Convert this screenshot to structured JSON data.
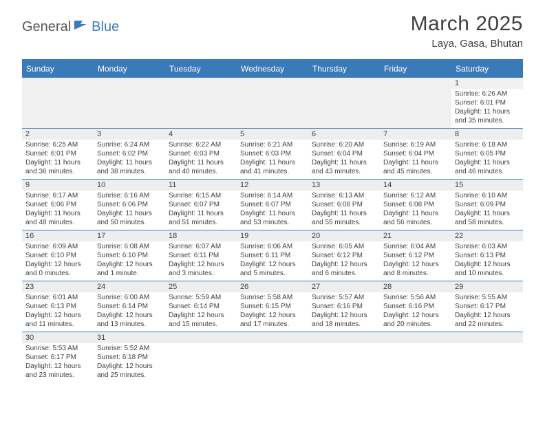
{
  "logo": {
    "part1": "General",
    "part2": "Blue"
  },
  "title": "March 2025",
  "location": "Laya, Gasa, Bhutan",
  "colors": {
    "accent": "#3b7ab8",
    "text": "#404040",
    "numstrip_bg": "#eeeeee",
    "firstweek_bg": "#f0f0f0",
    "background": "#ffffff"
  },
  "dayheaders": [
    "Sunday",
    "Monday",
    "Tuesday",
    "Wednesday",
    "Thursday",
    "Friday",
    "Saturday"
  ],
  "weeks": [
    {
      "first": true,
      "cells": [
        {
          "num": "",
          "lines": []
        },
        {
          "num": "",
          "lines": []
        },
        {
          "num": "",
          "lines": []
        },
        {
          "num": "",
          "lines": []
        },
        {
          "num": "",
          "lines": []
        },
        {
          "num": "",
          "lines": []
        },
        {
          "num": "1",
          "lines": [
            "Sunrise: 6:26 AM",
            "Sunset: 6:01 PM",
            "Daylight: 11 hours",
            "and 35 minutes."
          ]
        }
      ]
    },
    {
      "cells": [
        {
          "num": "2",
          "lines": [
            "Sunrise: 6:25 AM",
            "Sunset: 6:01 PM",
            "Daylight: 11 hours",
            "and 36 minutes."
          ]
        },
        {
          "num": "3",
          "lines": [
            "Sunrise: 6:24 AM",
            "Sunset: 6:02 PM",
            "Daylight: 11 hours",
            "and 38 minutes."
          ]
        },
        {
          "num": "4",
          "lines": [
            "Sunrise: 6:22 AM",
            "Sunset: 6:03 PM",
            "Daylight: 11 hours",
            "and 40 minutes."
          ]
        },
        {
          "num": "5",
          "lines": [
            "Sunrise: 6:21 AM",
            "Sunset: 6:03 PM",
            "Daylight: 11 hours",
            "and 41 minutes."
          ]
        },
        {
          "num": "6",
          "lines": [
            "Sunrise: 6:20 AM",
            "Sunset: 6:04 PM",
            "Daylight: 11 hours",
            "and 43 minutes."
          ]
        },
        {
          "num": "7",
          "lines": [
            "Sunrise: 6:19 AM",
            "Sunset: 6:04 PM",
            "Daylight: 11 hours",
            "and 45 minutes."
          ]
        },
        {
          "num": "8",
          "lines": [
            "Sunrise: 6:18 AM",
            "Sunset: 6:05 PM",
            "Daylight: 11 hours",
            "and 46 minutes."
          ]
        }
      ]
    },
    {
      "cells": [
        {
          "num": "9",
          "lines": [
            "Sunrise: 6:17 AM",
            "Sunset: 6:06 PM",
            "Daylight: 11 hours",
            "and 48 minutes."
          ]
        },
        {
          "num": "10",
          "lines": [
            "Sunrise: 6:16 AM",
            "Sunset: 6:06 PM",
            "Daylight: 11 hours",
            "and 50 minutes."
          ]
        },
        {
          "num": "11",
          "lines": [
            "Sunrise: 6:15 AM",
            "Sunset: 6:07 PM",
            "Daylight: 11 hours",
            "and 51 minutes."
          ]
        },
        {
          "num": "12",
          "lines": [
            "Sunrise: 6:14 AM",
            "Sunset: 6:07 PM",
            "Daylight: 11 hours",
            "and 53 minutes."
          ]
        },
        {
          "num": "13",
          "lines": [
            "Sunrise: 6:13 AM",
            "Sunset: 6:08 PM",
            "Daylight: 11 hours",
            "and 55 minutes."
          ]
        },
        {
          "num": "14",
          "lines": [
            "Sunrise: 6:12 AM",
            "Sunset: 6:08 PM",
            "Daylight: 11 hours",
            "and 56 minutes."
          ]
        },
        {
          "num": "15",
          "lines": [
            "Sunrise: 6:10 AM",
            "Sunset: 6:09 PM",
            "Daylight: 11 hours",
            "and 58 minutes."
          ]
        }
      ]
    },
    {
      "cells": [
        {
          "num": "16",
          "lines": [
            "Sunrise: 6:09 AM",
            "Sunset: 6:10 PM",
            "Daylight: 12 hours",
            "and 0 minutes."
          ]
        },
        {
          "num": "17",
          "lines": [
            "Sunrise: 6:08 AM",
            "Sunset: 6:10 PM",
            "Daylight: 12 hours",
            "and 1 minute."
          ]
        },
        {
          "num": "18",
          "lines": [
            "Sunrise: 6:07 AM",
            "Sunset: 6:11 PM",
            "Daylight: 12 hours",
            "and 3 minutes."
          ]
        },
        {
          "num": "19",
          "lines": [
            "Sunrise: 6:06 AM",
            "Sunset: 6:11 PM",
            "Daylight: 12 hours",
            "and 5 minutes."
          ]
        },
        {
          "num": "20",
          "lines": [
            "Sunrise: 6:05 AM",
            "Sunset: 6:12 PM",
            "Daylight: 12 hours",
            "and 6 minutes."
          ]
        },
        {
          "num": "21",
          "lines": [
            "Sunrise: 6:04 AM",
            "Sunset: 6:12 PM",
            "Daylight: 12 hours",
            "and 8 minutes."
          ]
        },
        {
          "num": "22",
          "lines": [
            "Sunrise: 6:03 AM",
            "Sunset: 6:13 PM",
            "Daylight: 12 hours",
            "and 10 minutes."
          ]
        }
      ]
    },
    {
      "cells": [
        {
          "num": "23",
          "lines": [
            "Sunrise: 6:01 AM",
            "Sunset: 6:13 PM",
            "Daylight: 12 hours",
            "and 11 minutes."
          ]
        },
        {
          "num": "24",
          "lines": [
            "Sunrise: 6:00 AM",
            "Sunset: 6:14 PM",
            "Daylight: 12 hours",
            "and 13 minutes."
          ]
        },
        {
          "num": "25",
          "lines": [
            "Sunrise: 5:59 AM",
            "Sunset: 6:14 PM",
            "Daylight: 12 hours",
            "and 15 minutes."
          ]
        },
        {
          "num": "26",
          "lines": [
            "Sunrise: 5:58 AM",
            "Sunset: 6:15 PM",
            "Daylight: 12 hours",
            "and 17 minutes."
          ]
        },
        {
          "num": "27",
          "lines": [
            "Sunrise: 5:57 AM",
            "Sunset: 6:16 PM",
            "Daylight: 12 hours",
            "and 18 minutes."
          ]
        },
        {
          "num": "28",
          "lines": [
            "Sunrise: 5:56 AM",
            "Sunset: 6:16 PM",
            "Daylight: 12 hours",
            "and 20 minutes."
          ]
        },
        {
          "num": "29",
          "lines": [
            "Sunrise: 5:55 AM",
            "Sunset: 6:17 PM",
            "Daylight: 12 hours",
            "and 22 minutes."
          ]
        }
      ]
    },
    {
      "cells": [
        {
          "num": "30",
          "lines": [
            "Sunrise: 5:53 AM",
            "Sunset: 6:17 PM",
            "Daylight: 12 hours",
            "and 23 minutes."
          ]
        },
        {
          "num": "31",
          "lines": [
            "Sunrise: 5:52 AM",
            "Sunset: 6:18 PM",
            "Daylight: 12 hours",
            "and 25 minutes."
          ]
        },
        {
          "num": "",
          "lines": []
        },
        {
          "num": "",
          "lines": []
        },
        {
          "num": "",
          "lines": []
        },
        {
          "num": "",
          "lines": []
        },
        {
          "num": "",
          "lines": []
        }
      ]
    }
  ]
}
